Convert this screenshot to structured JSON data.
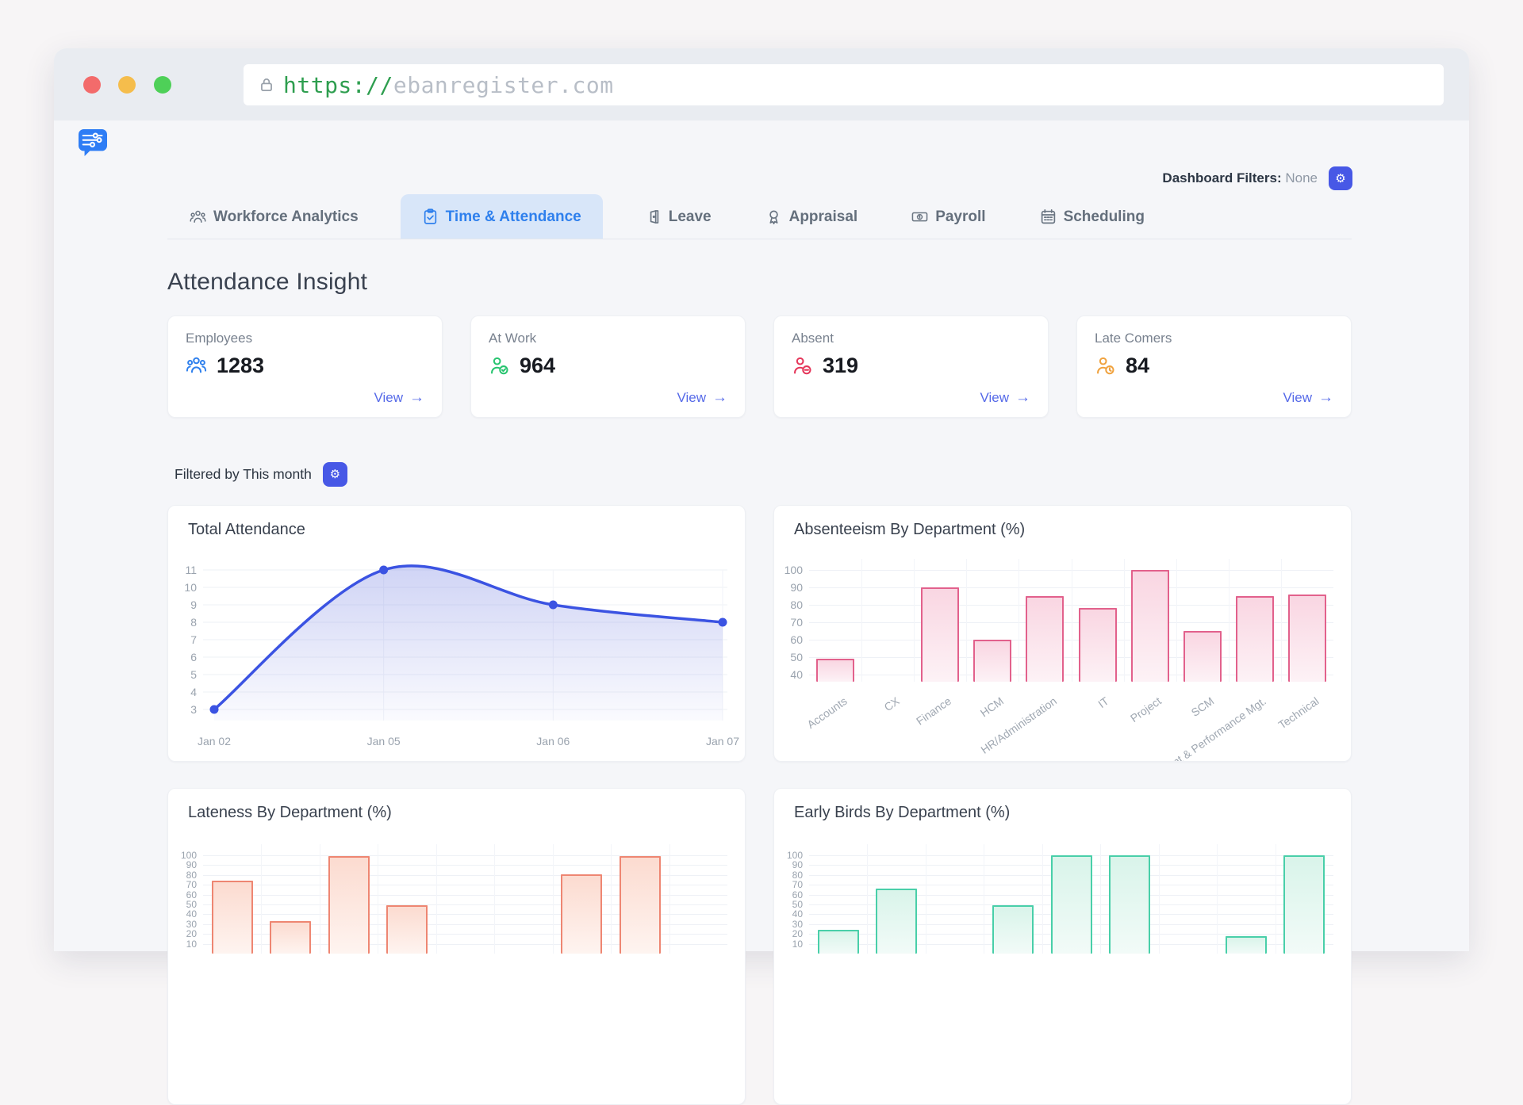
{
  "browser": {
    "url_scheme": "https://",
    "url_host": "ebanregister.com"
  },
  "header": {
    "filters_label": "Dashboard Filters:",
    "filters_value": "None",
    "gear_glyph": "⚙"
  },
  "tabs": [
    {
      "label": "Workforce Analytics",
      "icon": "people-group-icon",
      "active": false
    },
    {
      "label": "Time & Attendance",
      "icon": "clipboard-check-icon",
      "active": true
    },
    {
      "label": "Leave",
      "icon": "door-icon",
      "active": false
    },
    {
      "label": "Appraisal",
      "icon": "award-icon",
      "active": false
    },
    {
      "label": "Payroll",
      "icon": "banknote-icon",
      "active": false
    },
    {
      "label": "Scheduling",
      "icon": "calendar-icon",
      "active": false
    }
  ],
  "page": {
    "title": "Attendance Insight",
    "filter_text": "Filtered by This month"
  },
  "stats": {
    "view_label": "View",
    "arrow": "→",
    "cards": [
      {
        "label": "Employees",
        "value": "1283",
        "icon": "people-group-icon",
        "accent": "#2f80ed"
      },
      {
        "label": "At Work",
        "value": "964",
        "icon": "person-check-icon",
        "accent": "#27c46f"
      },
      {
        "label": "Absent",
        "value": "319",
        "icon": "person-minus-icon",
        "accent": "#e5365a"
      },
      {
        "label": "Late Comers",
        "value": "84",
        "icon": "person-clock-icon",
        "accent": "#f0a23e"
      }
    ]
  },
  "chart_data": [
    {
      "type": "line",
      "title": "Total Attendance",
      "x": [
        "Jan 02",
        "Jan 05",
        "Jan 06",
        "Jan 07"
      ],
      "values": [
        3,
        11,
        9,
        8
      ],
      "yticks": [
        3,
        4,
        5,
        6,
        7,
        8,
        9,
        10,
        11
      ],
      "ylim": [
        3,
        11
      ],
      "grid": true,
      "line_color": "#3b53e2",
      "area_color": "#6b78e0"
    },
    {
      "type": "bar",
      "title": "Absenteeism By Department (%)",
      "categories": [
        "Accounts",
        "CX",
        "Finance",
        "HCM",
        "HR/Administration",
        "IT",
        "Project",
        "SCM",
        "Talent & Performance Mgt.",
        "Technical"
      ],
      "values": [
        49,
        0,
        90,
        60,
        85,
        78,
        100,
        65,
        85,
        86
      ],
      "yticks": [
        40,
        50,
        60,
        70,
        80,
        90,
        100
      ],
      "ylim": [
        36,
        100
      ],
      "grid": true,
      "bar_stroke": "#e2618c",
      "bar_fill_top": "#f9d6e2",
      "bar_fill_bottom": "#fdf2f6"
    },
    {
      "type": "bar",
      "title": "Lateness By Department (%)",
      "categories": [],
      "values": [
        74,
        33,
        99,
        49,
        0,
        0,
        81,
        99,
        0
      ],
      "yticks": [
        10,
        20,
        30,
        40,
        50,
        60,
        70,
        80,
        90,
        100
      ],
      "ylim": [
        0,
        100
      ],
      "grid": true,
      "bar_stroke": "#ee8672",
      "bar_fill_top": "#fcdbd0",
      "bar_fill_bottom": "#fef4f0"
    },
    {
      "type": "bar",
      "title": "Early Birds By Department (%)",
      "categories": [],
      "values": [
        24,
        66,
        0,
        49,
        100,
        100,
        0,
        18,
        100
      ],
      "yticks": [
        10,
        20,
        30,
        40,
        50,
        60,
        70,
        80,
        90,
        100
      ],
      "ylim": [
        0,
        100
      ],
      "grid": true,
      "bar_stroke": "#49cfa9",
      "bar_fill_top": "#d9f4ea",
      "bar_fill_bottom": "#f2fbf8"
    }
  ]
}
